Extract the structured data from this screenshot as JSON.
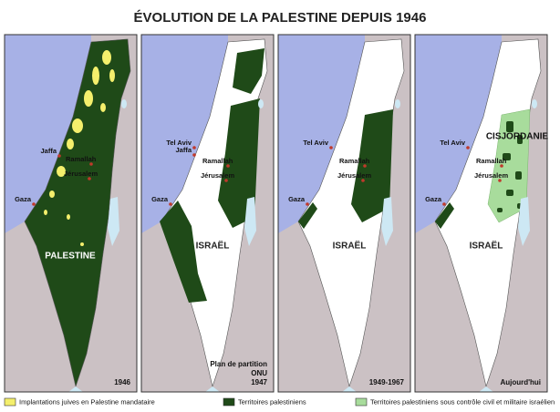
{
  "title": "ÉVOLUTION DE LA PALESTINE DEPUIS 1946",
  "panels": [
    {
      "places": [
        "Jaffa",
        "Ramallah",
        "Jérusalem",
        "Gaza"
      ],
      "region": "PALESTINE",
      "date": [
        "1946"
      ]
    },
    {
      "places": [
        "Tel Aviv",
        "Jaffa",
        "Ramallah",
        "Jérusalem",
        "Gaza"
      ],
      "region": "ISRAËL",
      "date": [
        "Plan de partition",
        "ONU",
        "1947"
      ]
    },
    {
      "places": [
        "Tel Aviv",
        "Ramallah",
        "Jérusalem",
        "Gaza"
      ],
      "region": "ISRAËL",
      "date": [
        "1949-1967"
      ]
    },
    {
      "places": [
        "Tel Aviv",
        "Ramallah",
        "Jérusalem",
        "Gaza"
      ],
      "region": "ISRAËL",
      "west_bank": "CISJORDANIE",
      "date": [
        "Aujourd'hui"
      ]
    }
  ],
  "legend": [
    {
      "label": "Implantations juives en Palestine mandataire",
      "color": "#f4ef6c"
    },
    {
      "label": "Territoires palestiniens",
      "color": "#1f4a18"
    },
    {
      "label": "Territoires palestiniens sous contrôle civil et militaire israélien",
      "color": "#a8dc9c"
    }
  ]
}
